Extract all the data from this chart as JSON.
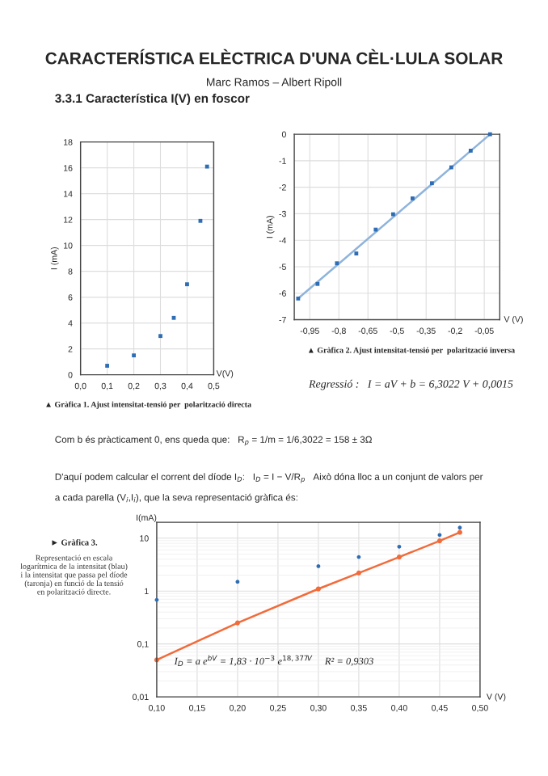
{
  "chart_data": [
    {
      "type": "scatter",
      "xlabel": "V(V)",
      "ylabel": "I (mA)",
      "xlim": [
        0,
        0.5
      ],
      "ylim": [
        0,
        18
      ],
      "xticks": [
        {
          "value": 0,
          "label": "0,0"
        },
        {
          "value": 0.1,
          "label": "0,1"
        },
        {
          "value": 0.2,
          "label": "0,2"
        },
        {
          "value": 0.3,
          "label": "0,3"
        },
        {
          "value": 0.4,
          "label": "0,4"
        },
        {
          "value": 0.5,
          "label": "0,5"
        }
      ],
      "yticks": [
        0,
        2,
        4,
        6,
        8,
        10,
        12,
        14,
        16,
        18
      ],
      "grid": true,
      "marker": "square",
      "series": [
        {
          "color": "#2e6db4",
          "x": [
            0.1,
            0.2,
            0.3,
            0.35,
            0.4,
            0.45,
            0.475
          ],
          "values": [
            0.7,
            1.5,
            3.0,
            4.4,
            7.0,
            11.9,
            16.1
          ]
        }
      ],
      "annotations": [
        "CARACTERÍSTICA ELÈCTRICA D'UNA CÈL·LULA SOLAR",
        "Marc Ramos – Albert Ripoll",
        "3.3.1 Característica I(V) en foscor",
        "▲ Gràfica 1. Ajust intensitat-tensió per  polarització directa"
      ]
    },
    {
      "type": "scatter",
      "xlabel": "V (V)",
      "ylabel": "I (mA)",
      "xlim": [
        -1.03,
        0.03
      ],
      "ylim": [
        -7,
        0
      ],
      "xticks": [
        {
          "value": -0.95,
          "label": "-0,95"
        },
        {
          "value": -0.8,
          "label": "-0,8"
        },
        {
          "value": -0.65,
          "label": "-0,65"
        },
        {
          "value": -0.5,
          "label": "-0,5"
        },
        {
          "value": -0.35,
          "label": "-0,35"
        },
        {
          "value": -0.2,
          "label": "-0,2"
        },
        {
          "value": -0.05,
          "label": "-0,05"
        }
      ],
      "yticks": [
        {
          "value": 0,
          "label": "0"
        },
        {
          "value": -1,
          "label": "-1"
        },
        {
          "value": -2,
          "label": "-2"
        },
        {
          "value": -3,
          "label": "-3"
        },
        {
          "value": -4,
          "label": "-4"
        },
        {
          "value": -5,
          "label": "-5"
        },
        {
          "value": -6,
          "label": "-6"
        },
        {
          "value": -7,
          "label": "-7"
        }
      ],
      "grid": true,
      "marker": "square",
      "series": [
        {
          "type": "line",
          "marker": "none",
          "color": "#8fb4dc",
          "x": [
            -1.01,
            -0.02
          ],
          "values": [
            -6.2,
            0
          ]
        },
        {
          "color": "#2e6db4",
          "x": [
            -1.01,
            -0.91,
            -0.81,
            -0.71,
            -0.61,
            -0.52,
            -0.42,
            -0.32,
            -0.22,
            -0.12,
            -0.02
          ],
          "values": [
            -6.2,
            -5.65,
            -4.87,
            -4.5,
            -3.6,
            -3.02,
            -2.42,
            -1.85,
            -1.25,
            -0.62,
            0
          ]
        }
      ],
      "annotations": [
        "▲ Gràfica 2. Ajust intensitat-tensió per  polarització inversa",
        "Regressió :   I = aV + b = 6,3022 V + 0,0015",
        "Com b és pràcticament 0, ens queda que:   R$_{p}$ = 1/m = 1/6,3022 = 158 ± 3Ω",
        "D'aquí podem calcular el corrent del díode I$_{D}$:   I$_{D}$ = I − V/R$_{p}$   Això dóna lloc a un conjunt de valors per",
        "a cada parella (V$_{i}$,I$_{i}$), que la seva representació gràfica és:"
      ]
    },
    {
      "type": "scatter",
      "xlabel": "V (V)",
      "ylabel": "I(mA)",
      "log": "y",
      "xlim": [
        0.1,
        0.5
      ],
      "ylim": [
        0.01,
        20
      ],
      "xticks": [
        {
          "value": 0.1,
          "label": "0,10"
        },
        {
          "value": 0.15,
          "label": "0,15"
        },
        {
          "value": 0.2,
          "label": "0,20"
        },
        {
          "value": 0.25,
          "label": "0,25"
        },
        {
          "value": 0.3,
          "label": "0,30"
        },
        {
          "value": 0.35,
          "label": "0,35"
        },
        {
          "value": 0.4,
          "label": "0,40"
        },
        {
          "value": 0.45,
          "label": "0,45"
        },
        {
          "value": 0.5,
          "label": "0,50"
        }
      ],
      "yticks": [
        {
          "value": 0.01,
          "label": "0,01"
        },
        {
          "value": 0.1,
          "label": "0,1"
        },
        {
          "value": 1,
          "label": "1"
        },
        {
          "value": 10,
          "label": "10"
        }
      ],
      "grid": true,
      "marker": "circle",
      "series": [
        {
          "color": "#2e6db4",
          "x": [
            0.1,
            0.2,
            0.3,
            0.35,
            0.4,
            0.45,
            0.475
          ],
          "values": [
            0.68,
            1.5,
            2.95,
            4.4,
            6.9,
            11.5,
            15.8
          ]
        },
        {
          "type": "line",
          "color": "#f26b3a",
          "x": [
            0.1,
            0.2,
            0.3,
            0.35,
            0.4,
            0.45,
            0.475
          ],
          "values": [
            0.05,
            0.25,
            1.1,
            2.2,
            4.4,
            8.9,
            12.9
          ]
        }
      ],
      "annotations": [
        "► Gràfica 3.",
        "Representació en escala logarítmica de la intensitat (blau) i la intensitat que passa pel díode (taronja) en funció de la tensió en polarització directe.",
        "I$_{D}$ = a e$^{bV}$ = 1,83 · 10$^{−3}$ e$^{18,377V}$     R² = 0,9303"
      ]
    }
  ]
}
